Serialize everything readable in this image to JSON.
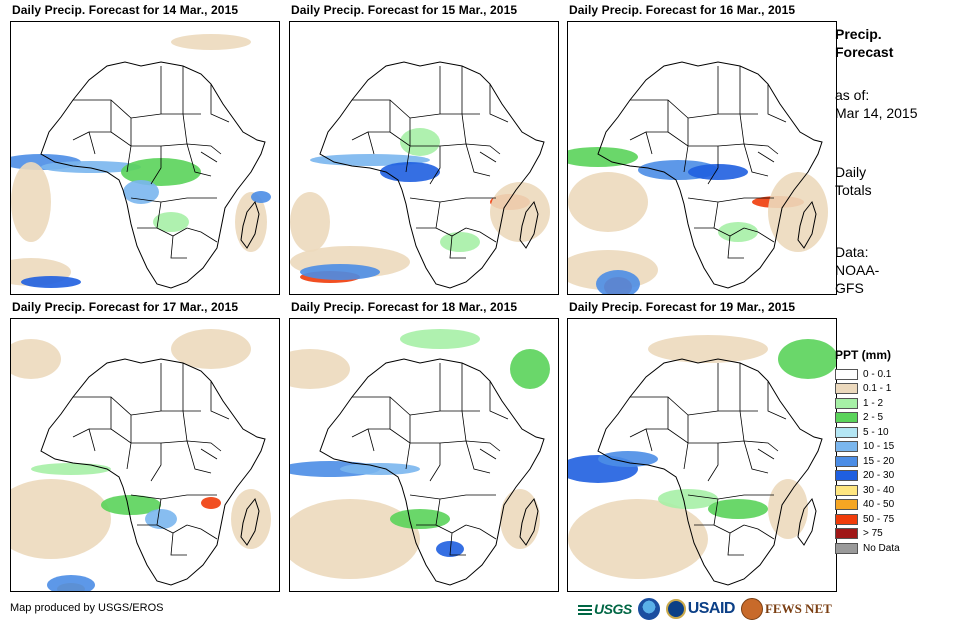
{
  "panels": [
    {
      "title": "Daily Precip. Forecast for 14 Mar., 2015"
    },
    {
      "title": "Daily Precip. Forecast for 15 Mar., 2015"
    },
    {
      "title": "Daily Precip. Forecast for 16 Mar., 2015"
    },
    {
      "title": "Daily Precip. Forecast for 17 Mar., 2015"
    },
    {
      "title": "Daily Precip. Forecast for 18 Mar., 2015"
    },
    {
      "title": "Daily Precip. Forecast for 19 Mar., 2015"
    }
  ],
  "sidebar": {
    "heading1": "Precip.",
    "heading2": "Forecast",
    "asof_label": "as of:",
    "asof_date": "Mar 14, 2015",
    "totals1": "Daily",
    "totals2": "Totals",
    "data1": "Data:",
    "data2": "NOAA-",
    "data3": "GFS"
  },
  "legend": {
    "title": "PPT (mm)",
    "items": [
      {
        "label": "0 - 0.1",
        "color": "#ffffff"
      },
      {
        "label": "0.1 - 1",
        "color": "#ecd9bd"
      },
      {
        "label": "1 - 2",
        "color": "#a6f0a6"
      },
      {
        "label": "2 - 5",
        "color": "#5ad35a"
      },
      {
        "label": "5 - 10",
        "color": "#b4e6f4"
      },
      {
        "label": "10 - 15",
        "color": "#7ab6ee"
      },
      {
        "label": "15 - 20",
        "color": "#4b8de6"
      },
      {
        "label": "20 - 30",
        "color": "#1f5fe0"
      },
      {
        "label": "30 - 40",
        "color": "#ffe680"
      },
      {
        "label": "40 - 50",
        "color": "#f5a623"
      },
      {
        "label": "50 - 75",
        "color": "#f03c0a"
      },
      {
        "label": "> 75",
        "color": "#a01818"
      },
      {
        "label": "No Data",
        "color": "#9a9a9a"
      }
    ]
  },
  "footer": {
    "credit": "Map produced by USGS/EROS",
    "logos": {
      "usgs": "USGS",
      "usaid": "USAID",
      "fews": "FEWS NET"
    }
  }
}
